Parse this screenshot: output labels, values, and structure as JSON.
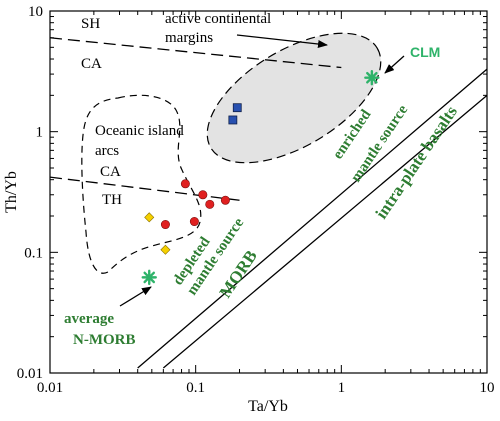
{
  "chart_data": {
    "type": "scatter",
    "title": "",
    "xlabel": "Ta/Yb",
    "ylabel": "Th/Yb",
    "xscale": "log",
    "yscale": "log",
    "xlim": [
      0.01,
      10
    ],
    "ylim": [
      0.01,
      10
    ],
    "x_ticks": [
      "0.01",
      "0.1",
      "1",
      "10"
    ],
    "y_ticks": [
      "0.01",
      "0.1",
      "1",
      "10"
    ],
    "grid": false,
    "series": [
      {
        "marker": "circle",
        "color": "#e02020",
        "points": [
          [
            0.085,
            0.37
          ],
          [
            0.112,
            0.3
          ],
          [
            0.125,
            0.25
          ],
          [
            0.16,
            0.27
          ],
          [
            0.062,
            0.17
          ],
          [
            0.098,
            0.18
          ]
        ]
      },
      {
        "marker": "diamond",
        "color": "#f5d000",
        "points": [
          [
            0.048,
            0.195
          ],
          [
            0.062,
            0.105
          ]
        ]
      },
      {
        "marker": "square",
        "color": "#2850b0",
        "points": [
          [
            0.193,
            1.58
          ],
          [
            0.18,
            1.25
          ]
        ]
      },
      {
        "marker": "asterisk",
        "color": "#2fb36a",
        "points": [
          [
            0.048,
            0.062
          ],
          [
            1.62,
            2.8
          ]
        ]
      }
    ],
    "lines": [
      {
        "style": "solid",
        "from": [
          0.06,
          0.011
        ],
        "to": [
          10,
          2.0
        ]
      },
      {
        "style": "solid",
        "from": [
          0.04,
          0.011
        ],
        "to": [
          10,
          3.3
        ]
      },
      {
        "style": "dashed",
        "from": [
          0.01,
          6.0
        ],
        "to": [
          1.0,
          3.4
        ]
      },
      {
        "style": "dashed",
        "from": [
          0.01,
          0.42
        ],
        "to": [
          0.2,
          0.27
        ]
      }
    ],
    "regions": [
      {
        "name": "active continental margins",
        "fill": "#e3e3e3",
        "style": "dashed"
      },
      {
        "name": "Oceanic island arcs",
        "fill": "none",
        "style": "dashed"
      }
    ],
    "annotations": {
      "sh": "SH",
      "ca_upper": "CA",
      "acm_line1": "active continental",
      "acm_line2": "margins",
      "oia_line1": "Oceanic island",
      "oia_line2": "arcs",
      "ca_lower": "CA",
      "th": "TH",
      "clm": "CLM",
      "enriched": "enriched",
      "mantle_source_upper": "mantle source",
      "intra_plate": "intra-plate basalts",
      "depleted": "depleted",
      "mantle_source_lower": "mantle source",
      "morb": "MORB",
      "average": "average",
      "n_morb": "N-MORB"
    }
  }
}
